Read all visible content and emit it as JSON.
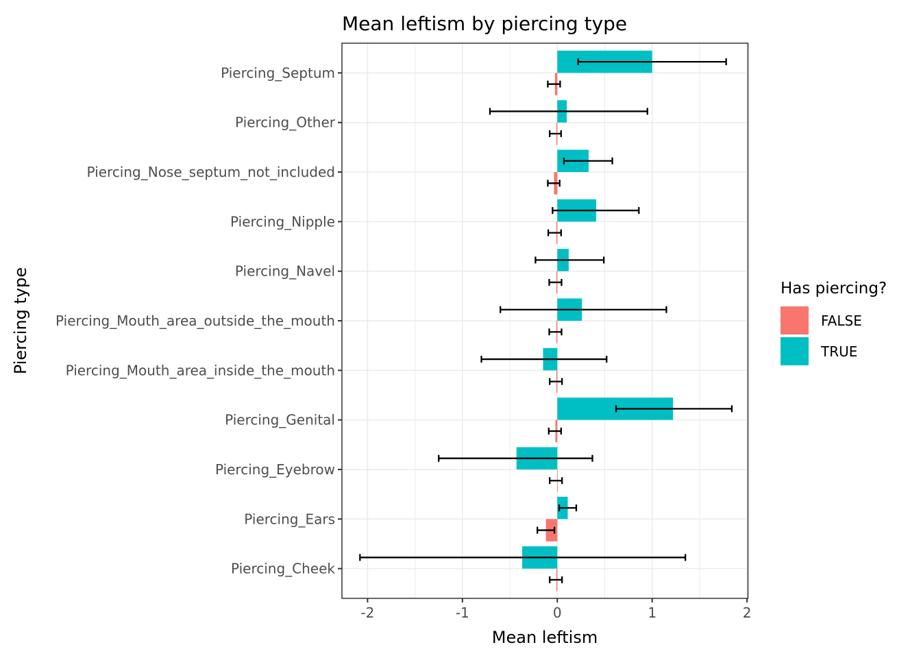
{
  "title": "Mean leftism by piercing type",
  "legend": {
    "title": "Has piercing?",
    "entries": [
      {
        "label": "FALSE",
        "color": "#F8766D"
      },
      {
        "label": "TRUE",
        "color": "#00BFC4"
      }
    ]
  },
  "chart_data": {
    "type": "bar",
    "orientation": "horizontal",
    "title": "Mean leftism by piercing type",
    "xlabel": "Mean leftism",
    "ylabel": "Piercing type",
    "xlim": [
      -2.27,
      2.01
    ],
    "xticks": [
      -2,
      -1,
      0,
      1,
      2
    ],
    "xtick_labels": [
      "-2",
      "-1",
      "0",
      "1",
      "2"
    ],
    "x_gridlines_minor": [
      -1.5,
      -0.5,
      0.5,
      1.5
    ],
    "grid": true,
    "legend_position": "right",
    "categories": [
      "Piercing_Septum",
      "Piercing_Other",
      "Piercing_Nose_septum_not_included",
      "Piercing_Nipple",
      "Piercing_Navel",
      "Piercing_Mouth_area_outside_the_mouth",
      "Piercing_Mouth_area_inside_the_mouth",
      "Piercing_Genital",
      "Piercing_Eyebrow",
      "Piercing_Ears",
      "Piercing_Cheek"
    ],
    "series": [
      {
        "name": "TRUE",
        "color": "#00BFC4",
        "position": "top",
        "values": [
          1.0,
          0.1,
          0.33,
          0.41,
          0.12,
          0.26,
          -0.15,
          1.22,
          -0.43,
          0.11,
          -0.37
        ],
        "ci_low": [
          0.22,
          -0.71,
          0.07,
          -0.05,
          -0.23,
          -0.6,
          -0.8,
          0.62,
          -1.25,
          0.02,
          -2.08
        ],
        "ci_high": [
          1.78,
          0.95,
          0.58,
          0.86,
          0.49,
          1.15,
          0.52,
          1.84,
          0.37,
          0.2,
          1.35
        ]
      },
      {
        "name": "FALSE",
        "color": "#F8766D",
        "position": "bottom",
        "values": [
          -0.025,
          -0.01,
          -0.035,
          -0.01,
          -0.01,
          -0.01,
          -0.01,
          -0.02,
          0.005,
          -0.12,
          -0.01
        ],
        "ci_low": [
          -0.1,
          -0.08,
          -0.1,
          -0.095,
          -0.085,
          -0.085,
          -0.08,
          -0.09,
          -0.08,
          -0.21,
          -0.08
        ],
        "ci_high": [
          0.03,
          0.04,
          0.025,
          0.04,
          0.045,
          0.045,
          0.05,
          0.04,
          0.05,
          -0.03,
          0.05
        ]
      }
    ],
    "style": {
      "grid_color": "#EBEBEB",
      "panel_border_color": "#333333",
      "tick_color": "#333333",
      "axis_text_color": "#4D4D4D",
      "title_color": "#000000",
      "errorbar_color": "#000000"
    }
  }
}
